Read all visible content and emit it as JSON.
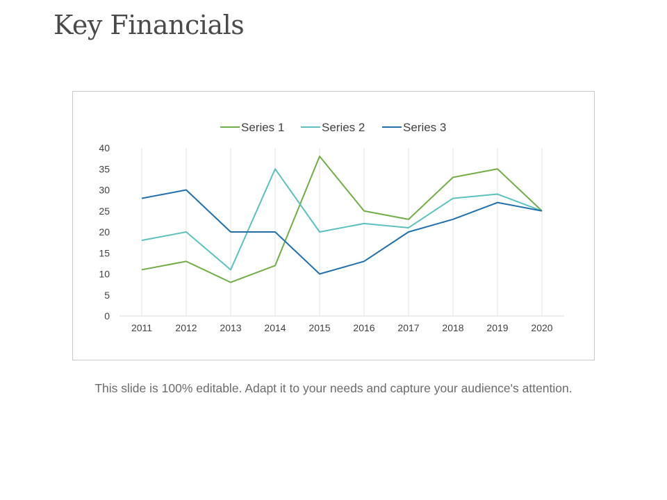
{
  "slide": {
    "title": "Key Financials",
    "caption": "This slide is 100% editable. Adapt it to your needs and capture your audience's attention."
  },
  "chart_data": {
    "type": "line",
    "categories": [
      "2011",
      "2012",
      "2013",
      "2014",
      "2015",
      "2016",
      "2017",
      "2018",
      "2019",
      "2020"
    ],
    "series": [
      {
        "name": "Series 1",
        "color": "#70ad47",
        "values": [
          11,
          13,
          8,
          12,
          38,
          25,
          23,
          33,
          35,
          25
        ]
      },
      {
        "name": "Series 2",
        "color": "#5bc0be",
        "values": [
          18,
          20,
          11,
          35,
          20,
          22,
          21,
          28,
          29,
          25
        ]
      },
      {
        "name": "Series 3",
        "color": "#1f6fad",
        "values": [
          28,
          30,
          20,
          20,
          10,
          13,
          20,
          23,
          27,
          25
        ]
      }
    ],
    "ylim": [
      0,
      40
    ],
    "yticks": [
      0,
      5,
      10,
      15,
      20,
      25,
      30,
      35,
      40
    ],
    "grid": "vertical",
    "legend": "top",
    "title": "",
    "xlabel": "",
    "ylabel": ""
  }
}
